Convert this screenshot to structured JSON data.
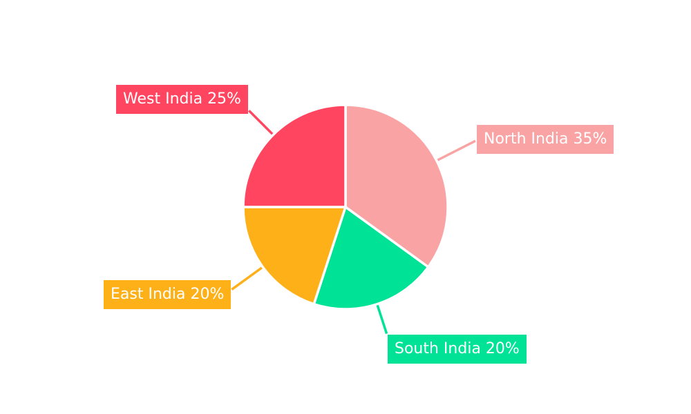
{
  "chart_data": {
    "type": "pie",
    "title": "",
    "start_angle": "top",
    "direction": "clockwise",
    "background": "#ffffff",
    "label_text_color": "#ffffff",
    "slices": [
      {
        "label": "North India",
        "value": 35,
        "unit": "%",
        "color": "#F9A3A4",
        "display": "North India 35%"
      },
      {
        "label": "South India",
        "value": 20,
        "unit": "%",
        "color": "#00E396",
        "display": "South India 20%"
      },
      {
        "label": "East India",
        "value": 20,
        "unit": "%",
        "color": "#FEB019",
        "display": "East India 20%"
      },
      {
        "label": "West India",
        "value": 25,
        "unit": "%",
        "color": "#FF4560",
        "display": "West India 25%"
      }
    ]
  }
}
